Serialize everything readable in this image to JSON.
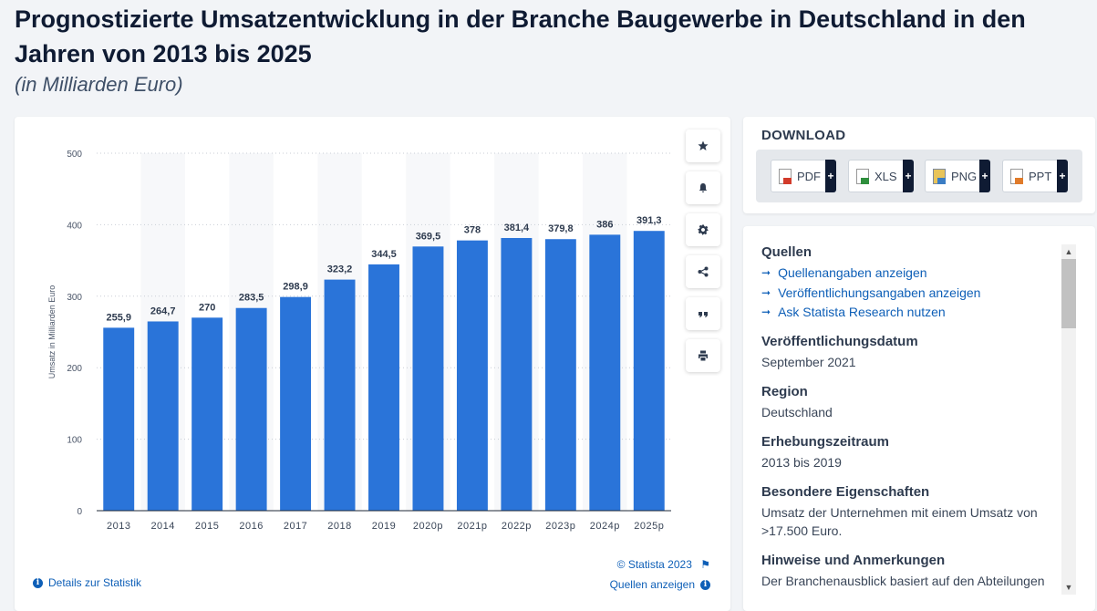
{
  "title": "Prognostizierte Umsatzentwicklung in der Branche Baugewerbe in Deutschland in den Jahren von 2013 bis 2025",
  "subtitle": "(in Milliarden Euro)",
  "chart_data": {
    "type": "bar",
    "title": "Prognostizierte Umsatzentwicklung in der Branche Baugewerbe in Deutschland in den Jahren von 2013 bis 2025",
    "ylabel": "Umsatz in Milliarden Euro",
    "xlabel": "",
    "ylim": [
      0,
      500
    ],
    "yticks": [
      0,
      100,
      200,
      300,
      400,
      500
    ],
    "categories": [
      "2013",
      "2014",
      "2015",
      "2016",
      "2017",
      "2018",
      "2019",
      "2020p",
      "2021p",
      "2022p",
      "2023p",
      "2024p",
      "2025p"
    ],
    "values": [
      255.9,
      264.7,
      270,
      283.5,
      298.9,
      323.2,
      344.5,
      369.5,
      378,
      381.4,
      379.8,
      386,
      391.3
    ],
    "value_labels": [
      "255,9",
      "264,7",
      "270",
      "283,5",
      "298,9",
      "323,2",
      "344,5",
      "369,5",
      "378",
      "381,4",
      "379,8",
      "386",
      "391,3"
    ],
    "bar_color": "#2a74d9",
    "grid": true
  },
  "chart_footer": {
    "copyright": "© Statista 2023",
    "details_label": "Details zur Statistik",
    "sources_label": "Quellen anzeigen"
  },
  "toolbar": {
    "icons": [
      "star-icon",
      "bell-icon",
      "gear-icon",
      "share-icon",
      "quote-icon",
      "print-icon"
    ]
  },
  "download": {
    "heading": "DOWNLOAD",
    "formats": [
      "PDF",
      "XLS",
      "PNG",
      "PPT"
    ],
    "plus": "+"
  },
  "info": {
    "sources_heading": "Quellen",
    "source_links": [
      "Quellenangaben anzeigen",
      "Veröffentlichungsangaben anzeigen",
      "Ask Statista Research nutzen"
    ],
    "pub_date_heading": "Veröffentlichungsdatum",
    "pub_date": "September 2021",
    "region_heading": "Region",
    "region": "Deutschland",
    "period_heading": "Erhebungszeitraum",
    "period": "2013 bis 2019",
    "special_heading": "Besondere Eigenschaften",
    "special": "Umsatz der Unternehmen mit einem Umsatz von >17.500 Euro.",
    "notes_heading": "Hinweise und Anmerkungen",
    "notes": "Der Branchenausblick basiert auf den Abteilungen"
  },
  "colors": {
    "accent": "#0e5fb7",
    "bar": "#2a74d9",
    "dark": "#0f1b33"
  }
}
